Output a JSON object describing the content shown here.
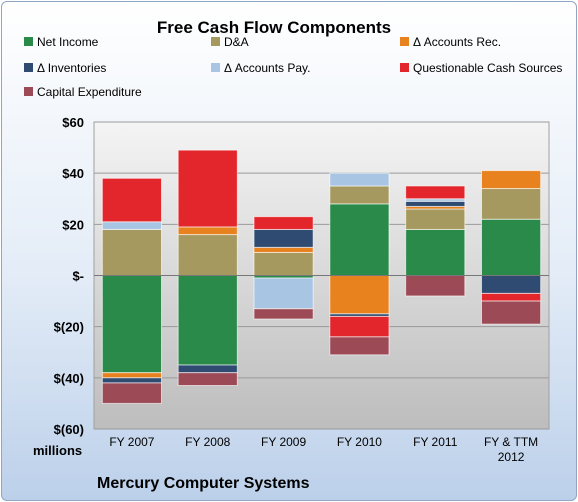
{
  "chart_data": {
    "type": "bar",
    "stacked": true,
    "title": "Free Cash Flow Components",
    "unit_label": "millions",
    "footer": "Mercury Computer Systems",
    "categories": [
      "FY 2007",
      "FY 2008",
      "FY 2009",
      "FY 2010",
      "FY 2011",
      "FY & TTM 2012"
    ],
    "ylim": [
      -60,
      60
    ],
    "yticks": [
      60,
      40,
      20,
      0,
      -20,
      -40,
      -60
    ],
    "ytick_labels": [
      "$60",
      "$40",
      "$20",
      "$-",
      "$(20)",
      "$(40)",
      "$(60)"
    ],
    "grid": true,
    "legend_position": "top",
    "series": [
      {
        "name": "Net Income",
        "color": "#2a8a4a",
        "values": [
          -38,
          -35,
          -1,
          28,
          18,
          22
        ]
      },
      {
        "name": "D&A",
        "color": "#a6995f",
        "values": [
          18,
          16,
          9,
          7,
          8,
          12
        ]
      },
      {
        "name": "Δ Accounts Rec.",
        "color": "#e8821f",
        "values": [
          -2,
          3,
          2,
          -15,
          1,
          7
        ]
      },
      {
        "name": "Δ Inventories",
        "color": "#2f4b72",
        "values": [
          -2,
          -3,
          7,
          -1,
          2,
          -7
        ]
      },
      {
        "name": "Δ Accounts Pay.",
        "color": "#a9c5e4",
        "values": [
          3,
          0,
          -12,
          5,
          1,
          0
        ]
      },
      {
        "name": "Questionable Cash Sources",
        "color": "#e3262b",
        "values": [
          17,
          30,
          5,
          -8,
          5,
          -3
        ]
      },
      {
        "name": "Capital Expenditure",
        "color": "#9c4a56",
        "values": [
          -8,
          -5,
          -4,
          -7,
          -8,
          -9
        ]
      }
    ]
  }
}
